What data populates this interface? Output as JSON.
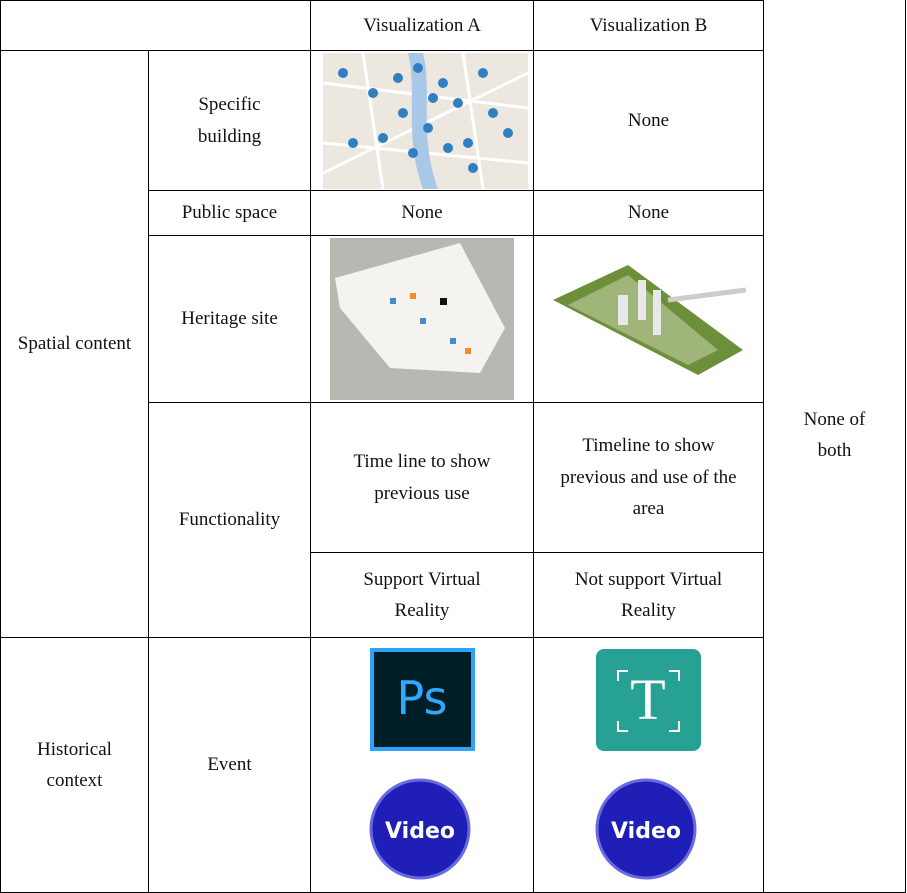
{
  "table": {
    "columns": [
      "Visualization A",
      "Visualization B"
    ],
    "note": "None of both",
    "groups": [
      {
        "label": "Spatial content",
        "rows": [
          {
            "label": "Specific building",
            "visualization_b": "None"
          },
          {
            "label": "Public space",
            "visualization_a": "None",
            "visualization_b": "None"
          },
          {
            "label": "Heritage site"
          },
          {
            "label": "Functionality",
            "items": [
              {
                "visualization_a": "Time line to show previous use",
                "visualization_b": "Timeline to show previous and use of the area"
              },
              {
                "visualization_a": "Support Virtual Reality",
                "visualization_b": "Not support Virtual Reality"
              }
            ]
          }
        ]
      },
      {
        "label": "Historical context",
        "rows": [
          {
            "label": "Event",
            "visualization_a_icons": [
              "Ps",
              "Video"
            ],
            "visualization_b_icons": [
              "T",
              "Video"
            ]
          }
        ]
      }
    ]
  }
}
